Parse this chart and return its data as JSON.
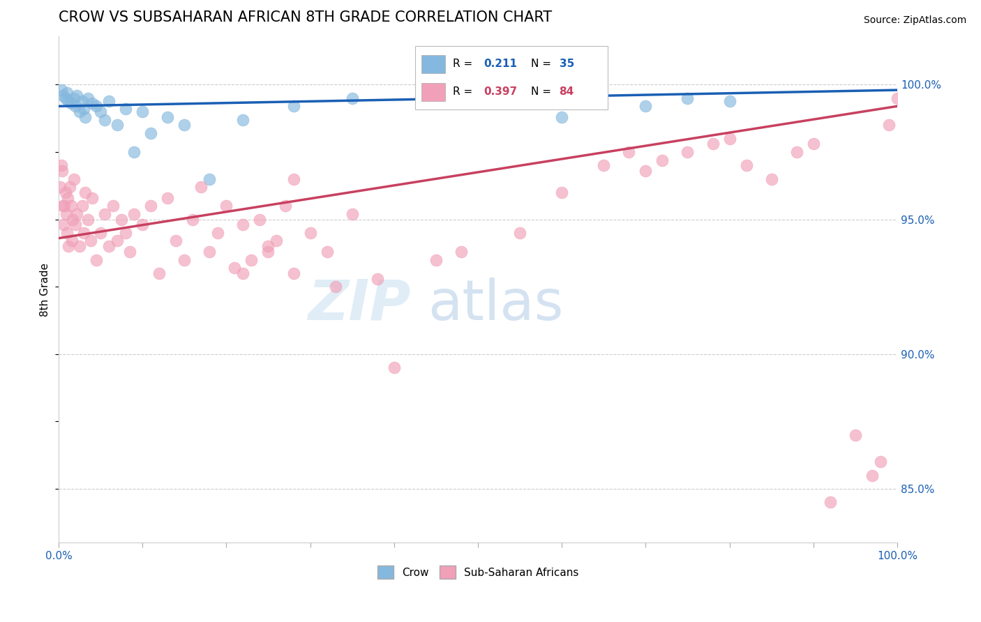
{
  "title": "CROW VS SUBSAHARAN AFRICAN 8TH GRADE CORRELATION CHART",
  "source_text": "Source: ZipAtlas.com",
  "ylabel": "8th Grade",
  "crow_R": 0.211,
  "crow_N": 35,
  "ssa_R": 0.397,
  "ssa_N": 84,
  "crow_color": "#85b8de",
  "ssa_color": "#f0a0b8",
  "crow_line_color": "#1a5fb4",
  "ssa_line_color": "#c84060",
  "watermark_zip": "ZIP",
  "watermark_atlas": "atlas",
  "crow_x": [
    0.3,
    0.5,
    0.8,
    1.0,
    1.2,
    1.5,
    1.8,
    2.0,
    2.2,
    2.5,
    2.8,
    3.0,
    3.2,
    3.5,
    4.0,
    4.5,
    5.0,
    5.5,
    6.0,
    7.0,
    8.0,
    9.0,
    10.0,
    11.0,
    13.0,
    15.0,
    18.0,
    22.0,
    28.0,
    35.0,
    50.0,
    60.0,
    70.0,
    75.0,
    80.0
  ],
  "crow_y": [
    99.8,
    99.6,
    99.5,
    99.7,
    99.4,
    99.3,
    99.5,
    99.2,
    99.6,
    99.0,
    99.4,
    99.1,
    98.8,
    99.5,
    99.3,
    99.2,
    99.0,
    98.7,
    99.4,
    98.5,
    99.1,
    97.5,
    99.0,
    98.2,
    98.8,
    98.5,
    96.5,
    98.7,
    99.2,
    99.5,
    99.3,
    98.8,
    99.2,
    99.5,
    99.4
  ],
  "ssa_x": [
    0.2,
    0.3,
    0.4,
    0.5,
    0.6,
    0.7,
    0.8,
    0.9,
    1.0,
    1.1,
    1.2,
    1.3,
    1.5,
    1.6,
    1.7,
    1.8,
    2.0,
    2.2,
    2.5,
    2.8,
    3.0,
    3.2,
    3.5,
    3.8,
    4.0,
    4.5,
    5.0,
    5.5,
    6.0,
    6.5,
    7.0,
    7.5,
    8.0,
    8.5,
    9.0,
    10.0,
    11.0,
    12.0,
    13.0,
    14.0,
    15.0,
    16.0,
    17.0,
    18.0,
    19.0,
    20.0,
    21.0,
    22.0,
    23.0,
    24.0,
    25.0,
    26.0,
    27.0,
    28.0,
    30.0,
    32.0,
    33.0,
    35.0,
    38.0,
    40.0,
    45.0,
    48.0,
    55.0,
    60.0,
    65.0,
    68.0,
    70.0,
    72.0,
    75.0,
    78.0,
    80.0,
    82.0,
    85.0,
    88.0,
    90.0,
    92.0,
    95.0,
    97.0,
    98.0,
    99.0,
    100.0,
    22.0,
    25.0,
    28.0
  ],
  "ssa_y": [
    96.2,
    97.0,
    96.8,
    95.5,
    94.8,
    95.5,
    96.0,
    95.2,
    94.5,
    95.8,
    94.0,
    96.2,
    95.5,
    94.2,
    95.0,
    96.5,
    94.8,
    95.2,
    94.0,
    95.5,
    94.5,
    96.0,
    95.0,
    94.2,
    95.8,
    93.5,
    94.5,
    95.2,
    94.0,
    95.5,
    94.2,
    95.0,
    94.5,
    93.8,
    95.2,
    94.8,
    95.5,
    93.0,
    95.8,
    94.2,
    93.5,
    95.0,
    96.2,
    93.8,
    94.5,
    95.5,
    93.2,
    94.8,
    93.5,
    95.0,
    93.8,
    94.2,
    95.5,
    93.0,
    94.5,
    93.8,
    92.5,
    95.2,
    92.8,
    89.5,
    93.5,
    93.8,
    94.5,
    96.0,
    97.0,
    97.5,
    96.8,
    97.2,
    97.5,
    97.8,
    98.0,
    97.0,
    96.5,
    97.5,
    97.8,
    84.5,
    87.0,
    85.5,
    86.0,
    98.5,
    99.5,
    93.0,
    94.0,
    96.5
  ],
  "ylim_min": 83.0,
  "ylim_max": 101.8,
  "crow_trendline": [
    99.2,
    99.8
  ],
  "ssa_trendline": [
    94.3,
    99.2
  ]
}
